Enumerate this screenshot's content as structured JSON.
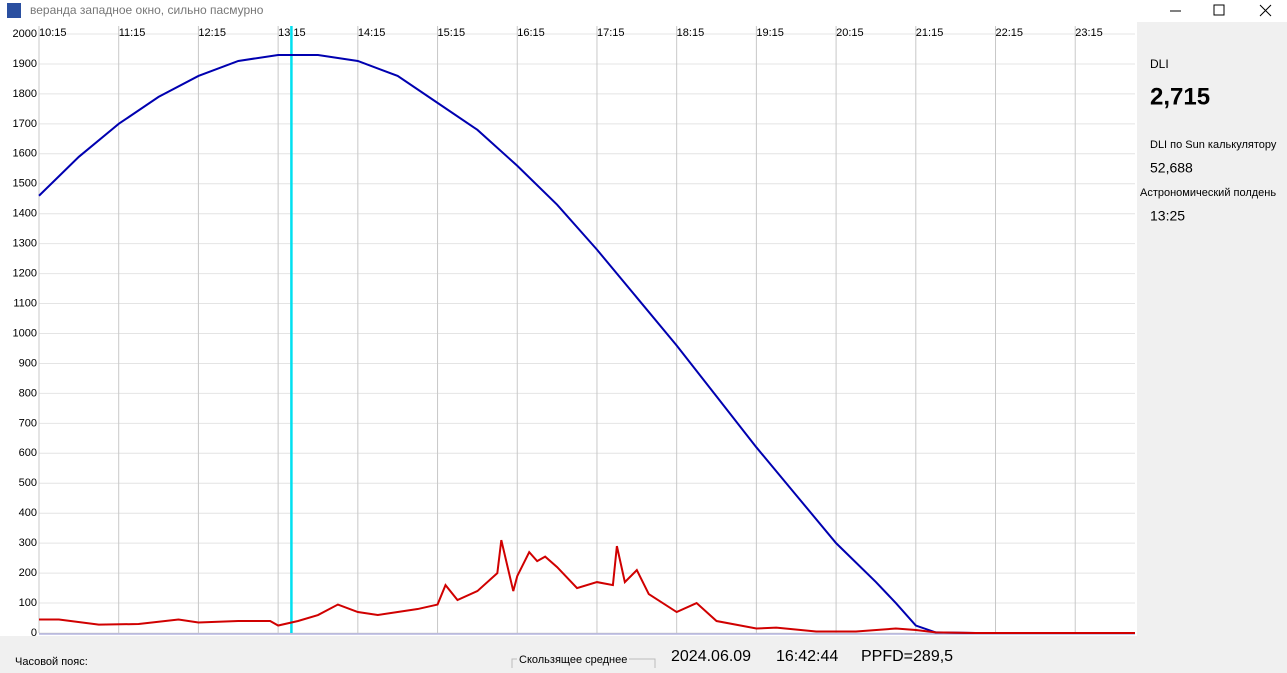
{
  "window": {
    "title": "веранда западное окно, сильно пасмурно"
  },
  "chart_data": {
    "type": "line",
    "xlim": [
      10.25,
      24
    ],
    "ylim": [
      0,
      2000
    ],
    "xticks": [
      {
        "value": 10.25,
        "label": "10:15"
      },
      {
        "value": 11.25,
        "label": "11:15"
      },
      {
        "value": 12.25,
        "label": "12:15"
      },
      {
        "value": 13.25,
        "label": "13:15"
      },
      {
        "value": 14.25,
        "label": "14:15"
      },
      {
        "value": 15.25,
        "label": "15:15"
      },
      {
        "value": 16.25,
        "label": "16:15"
      },
      {
        "value": 17.25,
        "label": "17:15"
      },
      {
        "value": 18.25,
        "label": "18:15"
      },
      {
        "value": 19.25,
        "label": "19:15"
      },
      {
        "value": 20.25,
        "label": "20:15"
      },
      {
        "value": 21.25,
        "label": "21:15"
      },
      {
        "value": 22.25,
        "label": "22:15"
      },
      {
        "value": 23.25,
        "label": "23:15"
      }
    ],
    "yticks": [
      0,
      100,
      200,
      300,
      400,
      500,
      600,
      700,
      800,
      900,
      1000,
      1100,
      1200,
      1300,
      1400,
      1500,
      1600,
      1700,
      1800,
      1900,
      2000
    ],
    "grid": true,
    "marker_x": 13.4167,
    "marker_color": "#00e0f0",
    "series": [
      {
        "color": "#0000b0",
        "x": [
          10.25,
          10.75,
          11.25,
          11.75,
          12.25,
          12.75,
          13.25,
          13.75,
          14.25,
          14.75,
          15.25,
          15.75,
          16.25,
          16.75,
          17.25,
          17.75,
          18.25,
          18.75,
          19.25,
          19.75,
          20.25,
          20.75,
          21.0,
          21.25,
          21.5,
          22,
          23,
          24
        ],
        "values": [
          1460,
          1590,
          1700,
          1790,
          1860,
          1910,
          1930,
          1930,
          1910,
          1860,
          1770,
          1680,
          1560,
          1430,
          1280,
          1120,
          960,
          790,
          620,
          460,
          300,
          170,
          100,
          25,
          2,
          0,
          0,
          0
        ]
      },
      {
        "color": "#d00000",
        "x": [
          10.25,
          10.5,
          11,
          11.5,
          12,
          12.25,
          12.75,
          13.15,
          13.25,
          13.5,
          13.75,
          14.0,
          14.25,
          14.5,
          14.75,
          15.0,
          15.25,
          15.35,
          15.5,
          15.75,
          16.0,
          16.05,
          16.2,
          16.25,
          16.4,
          16.5,
          16.6,
          16.75,
          17.0,
          17.25,
          17.45,
          17.5,
          17.6,
          17.75,
          17.9,
          18.25,
          18.5,
          18.75,
          19.25,
          19.5,
          20.0,
          20.5,
          21.0,
          21.25,
          21.5,
          22,
          24
        ],
        "values": [
          45,
          45,
          28,
          30,
          45,
          35,
          40,
          40,
          25,
          40,
          60,
          95,
          70,
          60,
          70,
          80,
          95,
          160,
          110,
          140,
          200,
          310,
          140,
          190,
          270,
          240,
          255,
          220,
          150,
          170,
          160,
          290,
          170,
          210,
          130,
          70,
          100,
          40,
          15,
          18,
          5,
          5,
          15,
          10,
          2,
          0,
          0
        ]
      }
    ]
  },
  "side": {
    "dli_label": "DLI",
    "dli_value": "2,715",
    "sun_label": "DLI по Sun калькулятору",
    "sun_value": "52,688",
    "noon_label": "Астрономический полдень",
    "noon_value": "13:25"
  },
  "status": {
    "timezone": "Часовой пояс:",
    "moving_avg": "Скользящее среднее",
    "date": "2024.06.09",
    "time": "16:42:44",
    "ppfd": "PPFD=289,5"
  }
}
